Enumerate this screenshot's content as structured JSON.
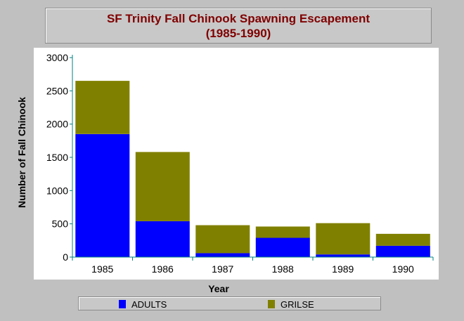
{
  "chart_data": {
    "type": "bar",
    "stacked": true,
    "title": "SF Trinity Fall Chinook Spawning Escapement",
    "subtitle": "(1985-1990)",
    "xlabel": "Year",
    "ylabel": "Number of Fall Chinook",
    "categories": [
      "1985",
      "1986",
      "1987",
      "1988",
      "1989",
      "1990"
    ],
    "series": [
      {
        "name": "ADULTS",
        "color": "#0000ff",
        "values": [
          1850,
          540,
          60,
          290,
          40,
          170
        ]
      },
      {
        "name": "GRILSE",
        "color": "#808000",
        "values": [
          800,
          1040,
          420,
          170,
          470,
          180
        ]
      }
    ],
    "ylim": [
      0,
      3000
    ],
    "yticks": [
      0,
      500,
      1000,
      1500,
      2000,
      2500,
      3000
    ],
    "grid": false,
    "legend_position": "bottom"
  }
}
